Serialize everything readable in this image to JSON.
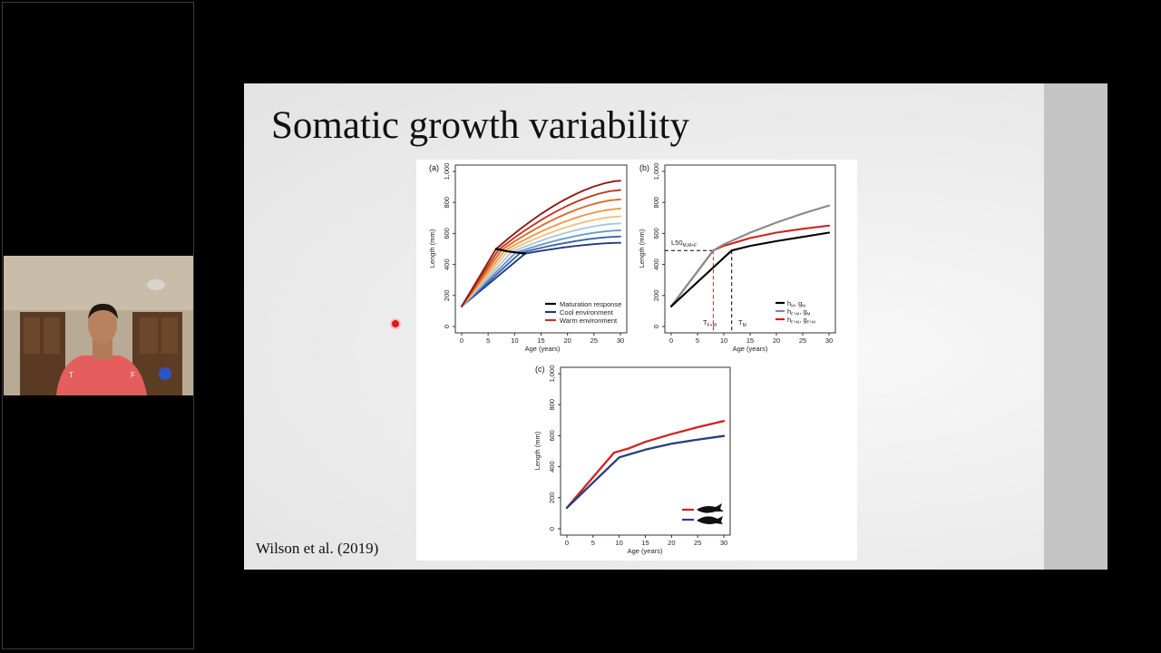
{
  "slide": {
    "title": "Somatic growth variability",
    "citation": "Wilson et al. (2019)"
  },
  "video_tile": {
    "content": "presenter-webcam"
  },
  "laser_pointer": {
    "color": "#e01818"
  },
  "figure": {
    "panel_a": {
      "label": "(a)",
      "xlabel": "Age (years)",
      "ylabel": "Length (mm)",
      "legend": [
        "Maturation response",
        "Cool environment",
        "Warm environment"
      ]
    },
    "panel_b": {
      "label": "(b)",
      "xlabel": "Age (years)",
      "ylabel": "Length (mm)",
      "annotations": {
        "l50": "L50",
        "l50_sub": "M,M+F",
        "tfm": "T",
        "tfm_sub": "F+M",
        "tm": "T",
        "tm_sub": "M"
      },
      "legend": [
        {
          "h": "h",
          "hs": "M",
          "g": ", g",
          "gs": "M"
        },
        {
          "h": "h",
          "hs": "F+M",
          "g": ", g",
          "gs": "M"
        },
        {
          "h": "h",
          "hs": "F+M",
          "g": ", g",
          "gs": "F+M"
        }
      ]
    },
    "panel_c": {
      "label": "(c)",
      "xlabel": "Age (years)",
      "ylabel": "Length (mm)"
    }
  },
  "chart_data": [
    {
      "type": "line",
      "panel": "a",
      "xlabel": "Age (years)",
      "ylabel": "Length (mm)",
      "x_ticks": [
        0,
        5,
        10,
        15,
        20,
        25,
        30
      ],
      "y_ticks": [
        "0",
        "200",
        "400",
        "600",
        "800",
        "1,000"
      ],
      "xlim": [
        0,
        30
      ],
      "ylim": [
        0,
        1000
      ],
      "colors": [
        "#243a7a",
        "#3a64a8",
        "#6d99c8",
        "#a9c9e0",
        "#f2c27e",
        "#ee9a48",
        "#de6a2c",
        "#c23a22",
        "#8f1b16"
      ],
      "series": [
        {
          "maturation_age": 12.0,
          "maturation_length": 470,
          "final_length": 540
        },
        {
          "maturation_age": 11.0,
          "maturation_length": 473,
          "final_length": 580
        },
        {
          "maturation_age": 10.2,
          "maturation_length": 476,
          "final_length": 620
        },
        {
          "maturation_age": 9.4,
          "maturation_length": 480,
          "final_length": 665
        },
        {
          "maturation_age": 8.7,
          "maturation_length": 484,
          "final_length": 710
        },
        {
          "maturation_age": 8.1,
          "maturation_length": 488,
          "final_length": 760
        },
        {
          "maturation_age": 7.5,
          "maturation_length": 492,
          "final_length": 820
        },
        {
          "maturation_age": 7.0,
          "maturation_length": 496,
          "final_length": 880
        },
        {
          "maturation_age": 6.5,
          "maturation_length": 500,
          "final_length": 940
        }
      ],
      "maturation_response": [
        [
          6.5,
          500
        ],
        [
          8.7,
          484
        ],
        [
          12.0,
          470
        ]
      ],
      "legend": [
        "Maturation response",
        "Cool environment",
        "Warm environment"
      ],
      "legend_position": "bottom-right"
    },
    {
      "type": "line",
      "panel": "b",
      "xlabel": "Age (years)",
      "ylabel": "Length (mm)",
      "x_ticks": [
        0,
        5,
        10,
        15,
        20,
        25,
        30
      ],
      "y_ticks": [
        "0",
        "200",
        "400",
        "600",
        "800",
        "1,000"
      ],
      "xlim": [
        0,
        30
      ],
      "ylim": [
        0,
        1000
      ],
      "series": [
        {
          "legend": 0,
          "color": "#000000",
          "points": [
            [
              0,
              130
            ],
            [
              11.5,
              490
            ],
            [
              15,
              520
            ],
            [
              20,
              550
            ],
            [
              25,
              578
            ],
            [
              30,
              605
            ]
          ]
        },
        {
          "legend": 1,
          "color": "#8a8a8a",
          "points": [
            [
              0,
              130
            ],
            [
              8,
              490
            ],
            [
              10,
              530
            ],
            [
              15,
              605
            ],
            [
              20,
              670
            ],
            [
              25,
              728
            ],
            [
              30,
              780
            ]
          ]
        },
        {
          "legend": 2,
          "color": "#d42020",
          "points": [
            [
              0,
              130
            ],
            [
              8,
              490
            ],
            [
              10,
              520
            ],
            [
              15,
              570
            ],
            [
              20,
              605
            ],
            [
              25,
              630
            ],
            [
              30,
              650
            ]
          ]
        }
      ],
      "reference_lines": {
        "l50_length": 490,
        "t_fm": 8,
        "t_m": 11.5
      },
      "legend_position": "bottom-right"
    },
    {
      "type": "line",
      "panel": "c",
      "xlabel": "Age (years)",
      "ylabel": "Length (mm)",
      "x_ticks": [
        0,
        5,
        10,
        15,
        20,
        25,
        30
      ],
      "y_ticks": [
        "0",
        "200",
        "400",
        "600",
        "800",
        "1,000"
      ],
      "xlim": [
        0,
        30
      ],
      "ylim": [
        0,
        1000
      ],
      "series": [
        {
          "color": "#d42020",
          "points": [
            [
              0,
              135
            ],
            [
              9,
              490
            ],
            [
              12,
              520
            ],
            [
              15,
              560
            ],
            [
              20,
              610
            ],
            [
              25,
              655
            ],
            [
              30,
              695
            ]
          ]
        },
        {
          "color": "#27407c",
          "points": [
            [
              0,
              135
            ],
            [
              10,
              460
            ],
            [
              12,
              480
            ],
            [
              15,
              510
            ],
            [
              20,
              548
            ],
            [
              25,
              575
            ],
            [
              30,
              598
            ]
          ]
        }
      ],
      "legend_position": "bottom-right"
    }
  ]
}
